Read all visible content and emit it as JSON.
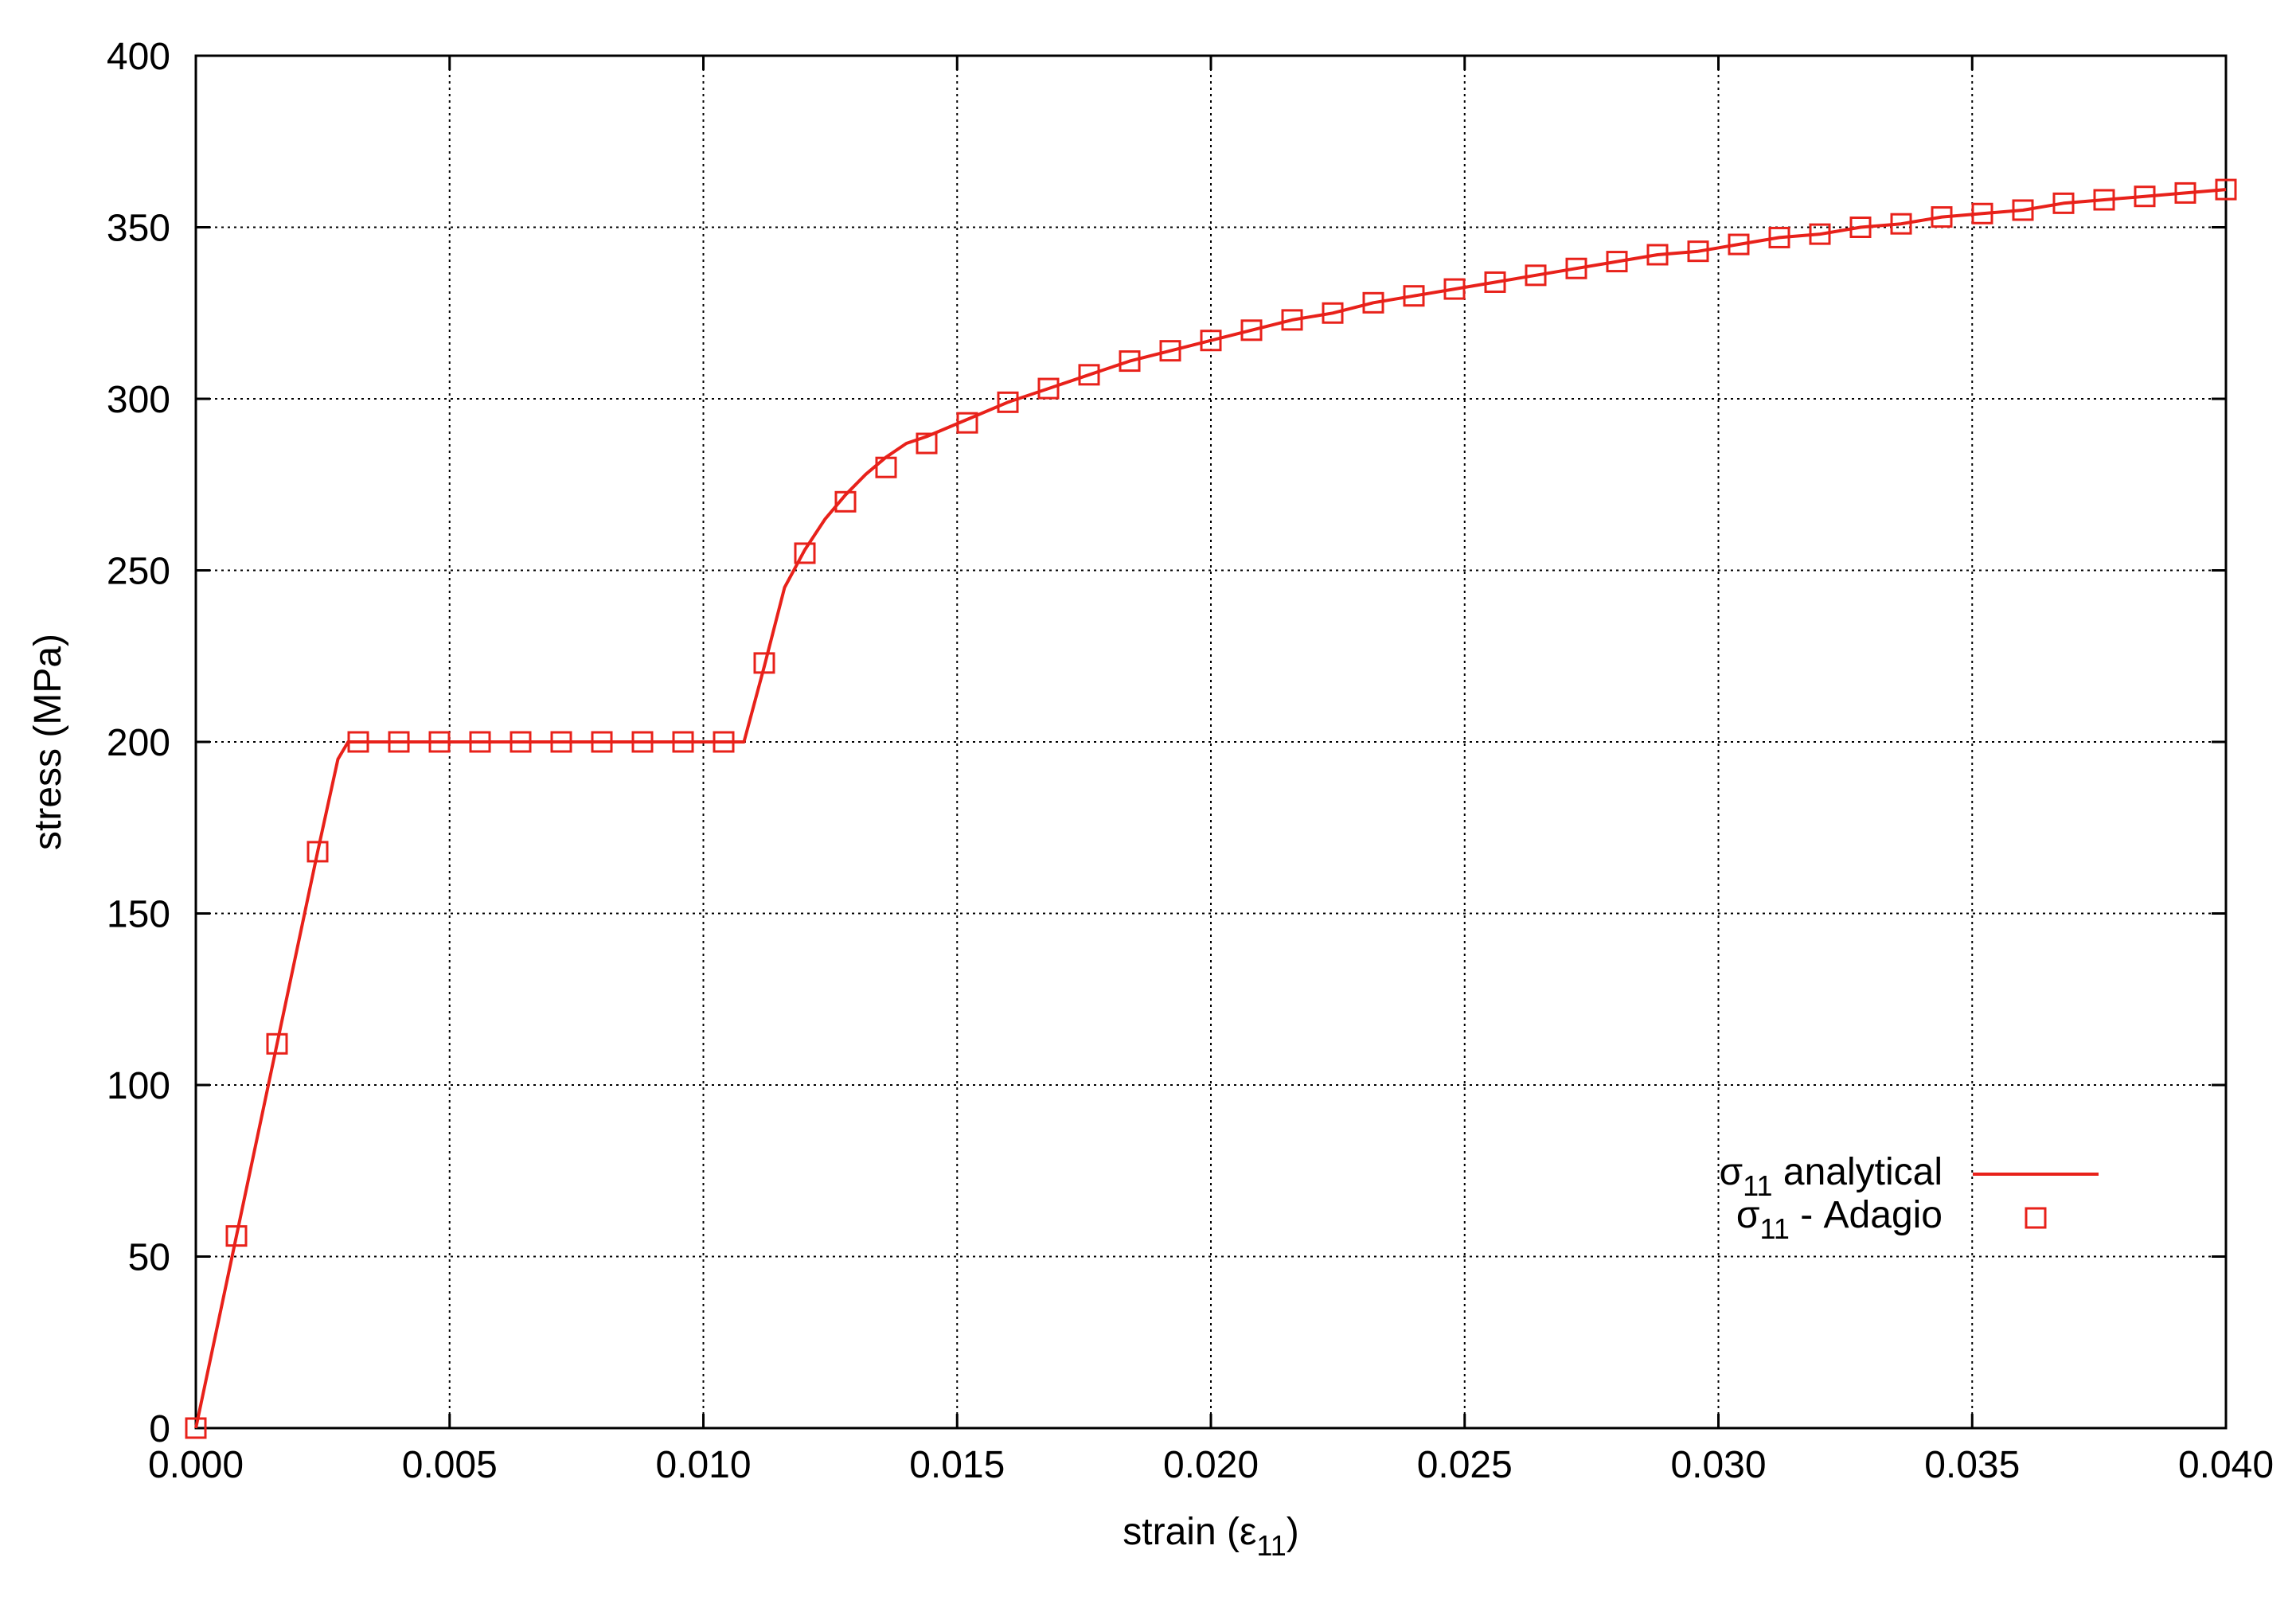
{
  "colors": {
    "series": "#e8211a",
    "grid": "#000000",
    "axis": "#000000",
    "background": "#ffffff"
  },
  "chart_data": {
    "type": "line",
    "title": "",
    "xlabel": "strain (ε11)",
    "xlabel_parts": {
      "base": "strain (ε",
      "sub": "11",
      "tail": ")"
    },
    "ylabel": "stress (MPa)",
    "xlim": [
      0.0,
      0.04
    ],
    "ylim": [
      0,
      400
    ],
    "x_ticks": [
      0.0,
      0.005,
      0.01,
      0.015,
      0.02,
      0.025,
      0.03,
      0.035,
      0.04
    ],
    "x_tick_labels": [
      "0.000",
      "0.005",
      "0.010",
      "0.015",
      "0.020",
      "0.025",
      "0.030",
      "0.035",
      "0.040"
    ],
    "y_ticks": [
      0,
      50,
      100,
      150,
      200,
      250,
      300,
      350,
      400
    ],
    "y_tick_labels": [
      "0",
      "50",
      "100",
      "150",
      "200",
      "250",
      "300",
      "350",
      "400"
    ],
    "grid": true,
    "legend_position": "bottom-right",
    "series": [
      {
        "name": "σ11 analytical",
        "legend_parts": {
          "base": "σ",
          "sub": "11",
          "tail": " analytical"
        },
        "style": "line",
        "x": [
          0.0,
          0.0008,
          0.0016,
          0.0024,
          0.0028,
          0.003,
          0.004,
          0.005,
          0.006,
          0.007,
          0.008,
          0.009,
          0.01,
          0.0108,
          0.0112,
          0.0116,
          0.012,
          0.0124,
          0.0128,
          0.0132,
          0.0136,
          0.014,
          0.0144,
          0.0152,
          0.016,
          0.0168,
          0.0176,
          0.0184,
          0.0192,
          0.02,
          0.0208,
          0.0216,
          0.0224,
          0.0232,
          0.024,
          0.0248,
          0.0256,
          0.0264,
          0.0272,
          0.028,
          0.0288,
          0.0296,
          0.0304,
          0.0312,
          0.032,
          0.0328,
          0.0336,
          0.0344,
          0.0352,
          0.036,
          0.0368,
          0.0376,
          0.0384,
          0.0392,
          0.04
        ],
        "y": [
          0,
          56,
          112,
          168,
          195,
          200,
          200,
          200,
          200,
          200,
          200,
          200,
          200,
          200,
          222,
          245,
          256,
          265,
          272,
          278,
          283,
          287,
          289,
          294,
          299,
          303,
          307,
          311,
          314,
          317,
          320,
          323,
          325,
          328,
          330,
          332,
          334,
          336,
          338,
          340,
          342,
          343,
          345,
          347,
          348,
          350,
          351,
          353,
          354,
          355,
          357,
          358,
          359,
          360,
          361
        ]
      },
      {
        "name": "σ11 - Adagio",
        "legend_parts": {
          "base": "σ",
          "sub": "11",
          "tail": " - Adagio"
        },
        "style": "markers",
        "marker": "open-square",
        "x": [
          0.0,
          0.0008,
          0.0016,
          0.0024,
          0.0032,
          0.004,
          0.0048,
          0.0056,
          0.0064,
          0.0072,
          0.008,
          0.0088,
          0.0096,
          0.0104,
          0.0112,
          0.012,
          0.0128,
          0.0136,
          0.0144,
          0.0152,
          0.016,
          0.0168,
          0.0176,
          0.0184,
          0.0192,
          0.02,
          0.0208,
          0.0216,
          0.0224,
          0.0232,
          0.024,
          0.0248,
          0.0256,
          0.0264,
          0.0272,
          0.028,
          0.0288,
          0.0296,
          0.0304,
          0.0312,
          0.032,
          0.0328,
          0.0336,
          0.0344,
          0.0352,
          0.036,
          0.0368,
          0.0376,
          0.0384,
          0.0392,
          0.04
        ],
        "y": [
          0,
          56,
          112,
          168,
          200,
          200,
          200,
          200,
          200,
          200,
          200,
          200,
          200,
          200,
          223,
          255,
          270,
          280,
          287,
          293,
          299,
          303,
          307,
          311,
          314,
          317,
          320,
          323,
          325,
          328,
          330,
          332,
          334,
          336,
          338,
          340,
          342,
          343,
          345,
          347,
          348,
          350,
          351,
          353,
          354,
          355,
          357,
          358,
          359,
          360,
          361
        ]
      }
    ]
  }
}
